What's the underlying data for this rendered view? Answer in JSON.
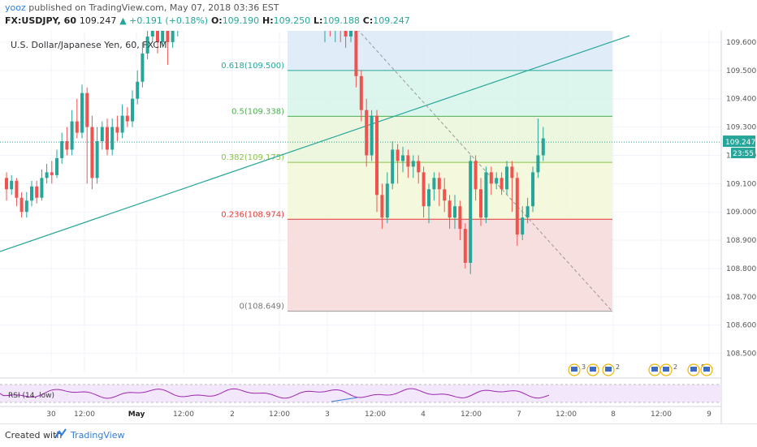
{
  "header": {
    "author": "yooz",
    "published_text": "published on TradingView.com, May 07, 2018 03:36 EST",
    "symbol": "FX:USDJPY, 60",
    "last": "109.247",
    "change": "▲ +0.191 (+0.18%)",
    "open_label": "O:",
    "open": "109.190",
    "high_label": "H:",
    "high": "109.250",
    "low_label": "L:",
    "low": "109.188",
    "close_label": "C:",
    "close": "109.247"
  },
  "legend_title": "U.S. Dollar/Japanese Yen, 60, FXCM",
  "footer": {
    "created_with": "Created with",
    "brand": "TradingView"
  },
  "colors": {
    "up": "#26a69a",
    "down": "#ef5350",
    "trendline": "#26a69a",
    "rsi": "#9c27b0",
    "grid": "#f0f3fa"
  },
  "price_tag": {
    "value": "109.247",
    "countdown": "23:55"
  },
  "chart_data": {
    "type": "line",
    "title": "U.S. Dollar/Japanese Yen, 60, FXCM",
    "ylim": [
      108.4,
      109.65
    ],
    "y_ticks": [
      "109.600",
      "109.500",
      "109.400",
      "109.300",
      "109.200",
      "109.100",
      "109.000",
      "108.900",
      "108.800",
      "108.700",
      "108.600",
      "108.500"
    ],
    "x_ticks": [
      "30",
      "12:00",
      "May",
      "12:00",
      "2",
      "12:00",
      "3",
      "12:00",
      "4",
      "12:00",
      "7",
      "12:00",
      "8",
      "12:00",
      "9"
    ],
    "fibonacci": [
      {
        "label": "0.618(109.500)",
        "level": 109.5
      },
      {
        "label": "0.5(109.338)",
        "level": 109.338
      },
      {
        "label": "0.382(109.175)",
        "level": 109.175
      },
      {
        "label": "0.236(108.974)",
        "level": 108.974
      },
      {
        "label": "0(108.649)",
        "level": 108.649
      }
    ],
    "candles": [
      [
        109.12,
        109.08,
        109.14,
        109.04
      ],
      [
        109.08,
        109.11,
        109.13,
        109.06
      ],
      [
        109.11,
        109.05,
        109.12,
        109.02
      ],
      [
        109.05,
        109.0,
        109.07,
        108.98
      ],
      [
        109.0,
        109.04,
        109.07,
        108.98
      ],
      [
        109.04,
        109.09,
        109.11,
        109.02
      ],
      [
        109.09,
        109.05,
        109.11,
        109.03
      ],
      [
        109.05,
        109.12,
        109.15,
        109.04
      ],
      [
        109.12,
        109.14,
        109.17,
        109.1
      ],
      [
        109.14,
        109.13,
        109.18,
        109.1
      ],
      [
        109.13,
        109.19,
        109.22,
        109.12
      ],
      [
        109.19,
        109.25,
        109.28,
        109.17
      ],
      [
        109.25,
        109.22,
        109.3,
        109.2
      ],
      [
        109.22,
        109.32,
        109.36,
        109.2
      ],
      [
        109.32,
        109.28,
        109.4,
        109.26
      ],
      [
        109.28,
        109.42,
        109.45,
        109.26
      ],
      [
        109.42,
        109.3,
        109.44,
        109.1
      ],
      [
        109.3,
        109.12,
        109.34,
        109.08
      ],
      [
        109.12,
        109.25,
        109.3,
        109.1
      ],
      [
        109.25,
        109.3,
        109.32,
        109.22
      ],
      [
        109.3,
        109.22,
        109.33,
        109.2
      ],
      [
        109.22,
        109.3,
        109.33,
        109.2
      ],
      [
        109.3,
        109.28,
        109.34,
        109.25
      ],
      [
        109.28,
        109.34,
        109.38,
        109.26
      ],
      [
        109.34,
        109.32,
        109.37,
        109.3
      ],
      [
        109.32,
        109.4,
        109.43,
        109.3
      ],
      [
        109.4,
        109.46,
        109.5,
        109.38
      ],
      [
        109.46,
        109.56,
        109.6,
        109.44
      ],
      [
        109.56,
        109.62,
        109.66,
        109.54
      ],
      [
        109.62,
        109.66,
        109.7,
        109.6
      ],
      [
        109.66,
        109.6,
        109.7,
        109.56
      ],
      [
        109.6,
        109.7,
        109.73,
        109.58
      ],
      [
        109.7,
        109.6,
        109.72,
        109.52
      ],
      [
        109.6,
        109.66,
        109.72,
        109.58
      ],
      [
        109.66,
        109.68,
        109.7,
        109.62
      ],
      [
        109.64,
        109.68,
        109.7,
        109.6
      ],
      [
        109.68,
        109.64,
        109.71,
        109.62
      ],
      [
        109.64,
        109.66,
        109.69,
        109.6
      ],
      [
        109.66,
        109.65,
        109.7,
        109.6
      ],
      [
        109.65,
        109.62,
        109.68,
        109.58
      ],
      [
        109.62,
        109.64,
        109.67,
        109.6
      ],
      [
        109.64,
        109.48,
        109.66,
        109.44
      ],
      [
        109.48,
        109.36,
        109.5,
        109.32
      ],
      [
        109.36,
        109.2,
        109.4,
        109.16
      ],
      [
        109.2,
        109.34,
        109.36,
        109.18
      ],
      [
        109.34,
        109.06,
        109.36,
        109.0
      ],
      [
        109.06,
        108.98,
        109.1,
        108.94
      ],
      [
        108.98,
        109.1,
        109.14,
        108.96
      ],
      [
        109.1,
        109.22,
        109.25,
        109.08
      ],
      [
        109.22,
        109.18,
        109.24,
        109.1
      ],
      [
        109.18,
        109.2,
        109.23,
        109.14
      ],
      [
        109.2,
        109.16,
        109.22,
        109.12
      ],
      [
        109.16,
        109.18,
        109.2,
        109.12
      ],
      [
        109.18,
        109.14,
        109.2,
        109.1
      ],
      [
        109.14,
        109.02,
        109.16,
        108.98
      ],
      [
        109.02,
        109.08,
        109.1,
        108.96
      ],
      [
        109.08,
        109.12,
        109.14,
        109.04
      ],
      [
        109.12,
        109.08,
        109.14,
        109.02
      ],
      [
        109.08,
        109.04,
        109.12,
        109.0
      ],
      [
        109.04,
        108.98,
        109.06,
        108.94
      ],
      [
        108.98,
        109.02,
        109.06,
        108.94
      ],
      [
        109.02,
        108.94,
        109.04,
        108.9
      ],
      [
        108.94,
        108.82,
        108.96,
        108.8
      ],
      [
        108.82,
        109.18,
        109.2,
        108.78
      ],
      [
        109.18,
        109.08,
        109.2,
        109.04
      ],
      [
        109.08,
        108.98,
        109.12,
        108.95
      ],
      [
        108.98,
        109.14,
        109.16,
        108.96
      ],
      [
        109.14,
        109.1,
        109.16,
        109.06
      ],
      [
        109.1,
        109.12,
        109.14,
        109.08
      ],
      [
        109.12,
        109.08,
        109.14,
        109.06
      ],
      [
        109.08,
        109.16,
        109.18,
        109.06
      ],
      [
        109.16,
        109.12,
        109.18,
        109.0
      ],
      [
        109.12,
        108.92,
        109.14,
        108.88
      ],
      [
        108.92,
        108.98,
        109.02,
        108.9
      ],
      [
        108.98,
        109.02,
        109.05,
        108.96
      ],
      [
        109.02,
        109.14,
        109.16,
        109.0
      ],
      [
        109.14,
        109.2,
        109.33,
        109.12
      ],
      [
        109.2,
        109.26,
        109.3,
        109.18
      ]
    ],
    "rsi": {
      "label": "RSI (14, low)"
    }
  }
}
